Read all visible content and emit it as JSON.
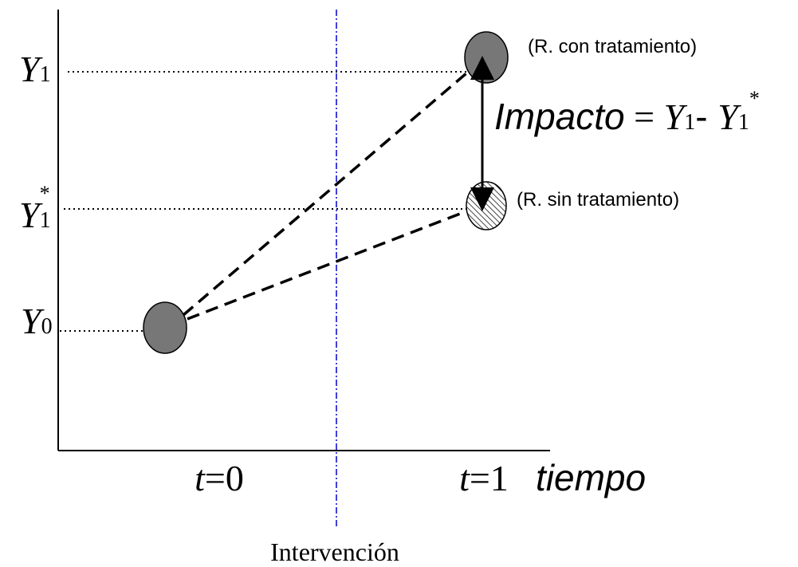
{
  "y_labels": [
    {
      "symbol": "Y",
      "subscript": "1"
    },
    {
      "symbol": "Y",
      "subscript": "1",
      "superscript": "*"
    },
    {
      "symbol": "Y",
      "subscript": "0"
    }
  ],
  "x_labels": [
    {
      "variable": "t",
      "rest": "=0"
    },
    {
      "variable": "t",
      "rest": "=1"
    }
  ],
  "x_axis_title": "tiempo",
  "intervention_label": "Intervención",
  "outcome_labels": {
    "treated": "(R. con tratamiento)",
    "untreated": "(R. sin tratamiento)"
  },
  "equation": {
    "word": "Impacto",
    "equals": " = ",
    "y1": "Y",
    "y1_sub": "1",
    "minus": "- ",
    "y2": "Y",
    "y2_sub": "1",
    "y2_sup": "*"
  }
}
